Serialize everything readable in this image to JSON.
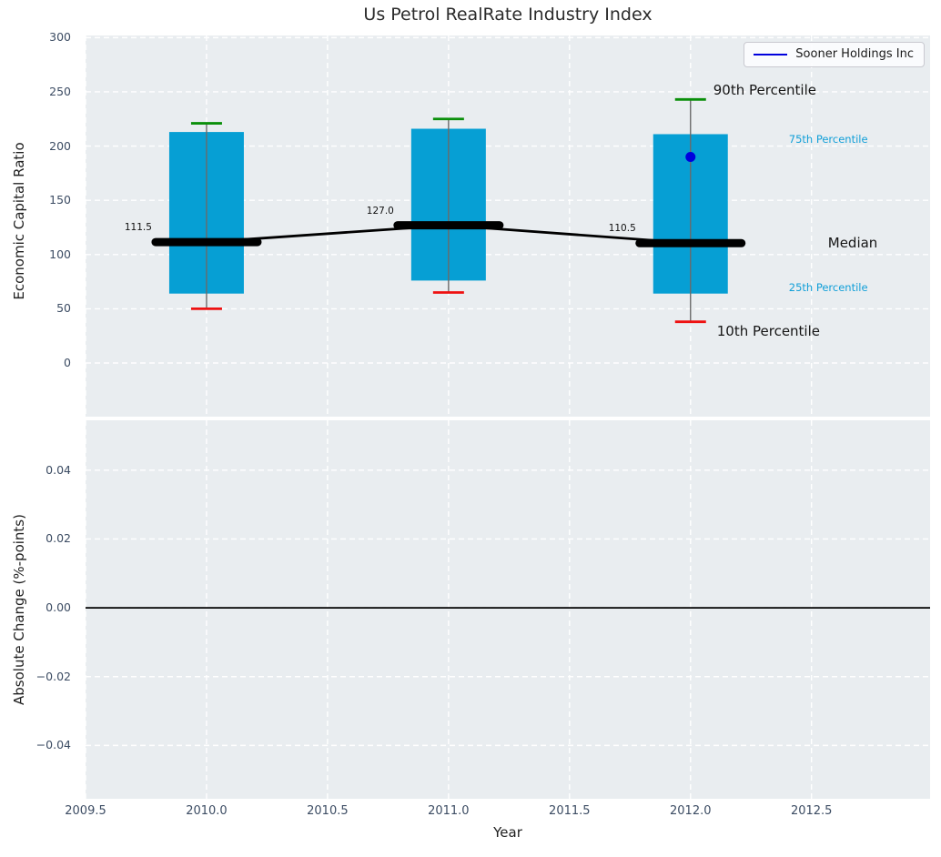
{
  "chart_data": {
    "type": "boxplot-line",
    "title": "Us Petrol RealRate Industry Index",
    "xlabel": "Year",
    "xlim": [
      2009.5,
      2012.99
    ],
    "x_ticks": [
      {
        "value": 2009.5,
        "label": "2009.5"
      },
      {
        "value": 2010.0,
        "label": "2010.0"
      },
      {
        "value": 2010.5,
        "label": "2010.5"
      },
      {
        "value": 2011.0,
        "label": "2011.0"
      },
      {
        "value": 2011.5,
        "label": "2011.5"
      },
      {
        "value": 2012.0,
        "label": "2012.0"
      },
      {
        "value": 2012.5,
        "label": "2012.5"
      }
    ],
    "grid": true,
    "legend": {
      "label": "Sooner Holdings Inc",
      "position": "top-right"
    },
    "panels": [
      {
        "key": "top",
        "ylabel": "Economic Capital Ratio",
        "ylim": [
          -49.5,
          302
        ],
        "y_ticks": [
          {
            "value": 0,
            "label": "0"
          },
          {
            "value": 50,
            "label": "50"
          },
          {
            "value": 100,
            "label": "100"
          },
          {
            "value": 150,
            "label": "150"
          },
          {
            "value": 200,
            "label": "200"
          },
          {
            "value": 250,
            "label": "250"
          },
          {
            "value": 300,
            "label": "300"
          }
        ],
        "boxes": [
          {
            "x": 2010,
            "p10": 50,
            "p25": 64,
            "median": 111.5,
            "p75": 213,
            "p90": 221,
            "median_label": "111.5"
          },
          {
            "x": 2011,
            "p10": 65,
            "p25": 76,
            "median": 127.0,
            "p75": 216,
            "p90": 225,
            "median_label": "127.0"
          },
          {
            "x": 2012,
            "p10": 38,
            "p25": 64,
            "median": 110.5,
            "p75": 211,
            "p90": 243,
            "median_label": "110.5"
          }
        ],
        "series": [
          {
            "name": "Sooner Holdings Inc",
            "color": "#0000dd",
            "points": [
              [
                2012,
                190
              ]
            ]
          }
        ],
        "percentile_labels": [
          {
            "quantile": "p90",
            "text": "90th Percentile",
            "emphasis": "strong"
          },
          {
            "quantile": "p75",
            "text": "75th Percentile",
            "emphasis": "subtle"
          },
          {
            "quantile": "median",
            "text": "Median",
            "emphasis": "strong"
          },
          {
            "quantile": "p25",
            "text": "25th Percentile",
            "emphasis": "subtle"
          },
          {
            "quantile": "p10",
            "text": "10th Percentile",
            "emphasis": "strong"
          }
        ]
      },
      {
        "key": "bot",
        "ylabel": "Absolute Change (%-points)",
        "ylim": [
          -0.0555,
          0.0545
        ],
        "y_ticks": [
          {
            "value": 0.04,
            "label": "0.04"
          },
          {
            "value": 0.02,
            "label": "0.02"
          },
          {
            "value": 0.0,
            "label": "0.00"
          },
          {
            "value": -0.02,
            "label": "−0.02"
          },
          {
            "value": -0.04,
            "label": "−0.04"
          }
        ],
        "zero_line": true
      }
    ],
    "colors": {
      "panel_bg": "#e9edf0",
      "grid": "#ffffff",
      "box_fill": "#069fd4",
      "whisker": "#6a6a6a",
      "cap_top": "#0a8f0a",
      "cap_bottom": "#ee1111",
      "median": "#000000",
      "series": "#0000dd",
      "tick_label": "#3c4c63",
      "percentile_subtle": "#119fd8"
    }
  }
}
